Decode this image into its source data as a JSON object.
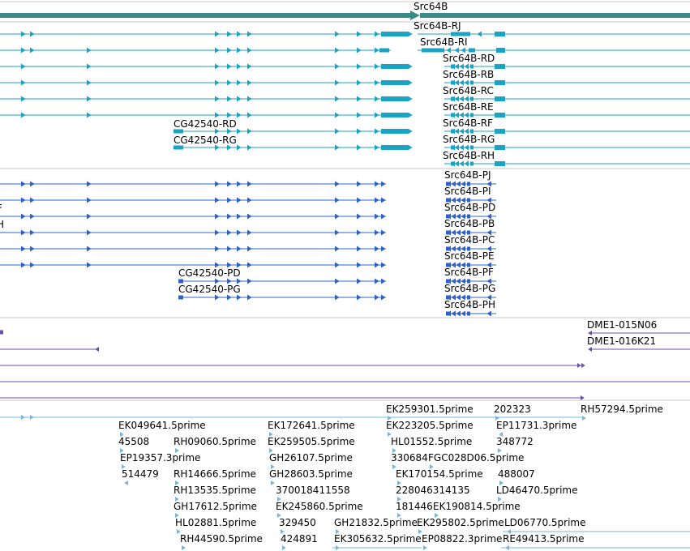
{
  "colors": {
    "gene": "#3b8a8a",
    "transcript": "#1aa3c4",
    "protein": "#2d63c8",
    "clone": "#6b4fa8",
    "est": "#7ab4dc",
    "separator": "#c8c8c8"
  },
  "gene": {
    "label": "Src64B"
  },
  "transcripts": {
    "src": [
      "Src64B-RJ",
      "Src64B-RI",
      "Src64B-RD",
      "Src64B-RB",
      "Src64B-RC",
      "Src64B-RE",
      "Src64B-RF",
      "Src64B-RG",
      "Src64B-RH"
    ],
    "cg": [
      "CG42540-RD",
      "CG42540-RG"
    ]
  },
  "proteins": {
    "src": [
      "Src64B-PJ",
      "Src64B-PI",
      "Src64B-PD",
      "Src64B-PB",
      "Src64B-PC",
      "Src64B-PE",
      "Src64B-PF",
      "Src64B-PG",
      "Src64B-PH"
    ],
    "cg": [
      "CG42540-PD",
      "CG42540-PG"
    ],
    "clipped": [
      "F",
      "H"
    ]
  },
  "clones": [
    "DME1-015N06",
    "DME1-016K21"
  ],
  "ests": [
    "EK259301.5prime",
    "202323",
    "RH57294.5prime",
    "EK049641.5prime",
    "EK172641.5prime",
    "EK223205.5prime",
    "EP11731.3prime",
    "45508",
    "RH09060.5prime",
    "EK259505.5prime",
    "HL01552.5prime",
    "348772",
    "EP19357.3prime",
    "GH26107.5prime",
    "330684",
    "FGC028D06.5prime",
    "514479",
    "RH14666.5prime",
    "GH28603.5prime",
    "EK170154.5prime",
    "488007",
    "RH13535.5prime",
    "370018411558",
    "228046314135",
    "LD46470.5prime",
    "GH17612.5prime",
    "EK245860.5prime",
    "181446",
    "EK190814.5prime",
    "HL02881.5prime",
    "329450",
    "GH21832.5prime",
    "EK295802.5prime",
    "LD06770.5prime",
    "RH44590.5prime",
    "424891",
    "EK305632.5prime",
    "EP08822.3prime",
    "RE49413.5prime"
  ]
}
